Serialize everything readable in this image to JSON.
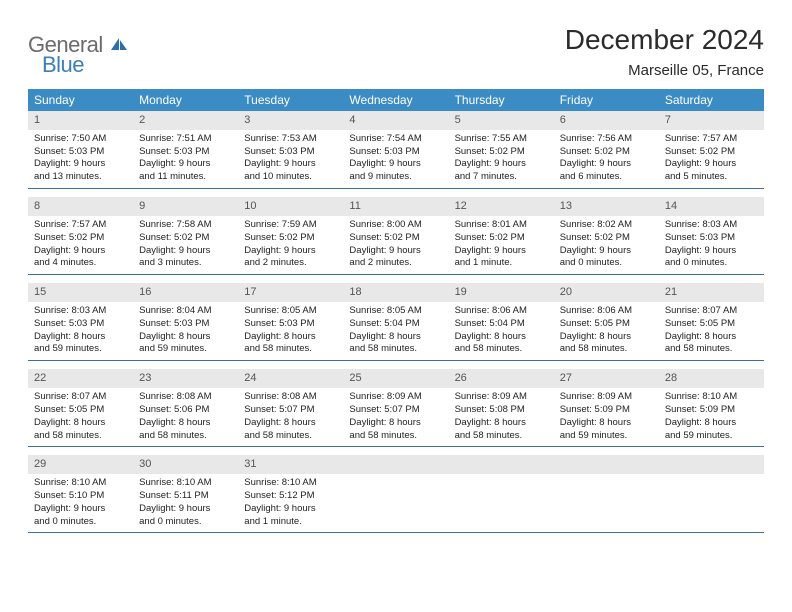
{
  "logo": {
    "text1": "General",
    "text2": "Blue"
  },
  "title": "December 2024",
  "location": "Marseille 05, France",
  "header_bg": "#3b8bc4",
  "header_fg": "#ffffff",
  "daynum_bg": "#e8e8e8",
  "row_border": "#3b6fa0",
  "dow": [
    "Sunday",
    "Monday",
    "Tuesday",
    "Wednesday",
    "Thursday",
    "Friday",
    "Saturday"
  ],
  "weeks": [
    [
      {
        "n": "1",
        "sr": "Sunrise: 7:50 AM",
        "ss": "Sunset: 5:03 PM",
        "d1": "Daylight: 9 hours",
        "d2": "and 13 minutes."
      },
      {
        "n": "2",
        "sr": "Sunrise: 7:51 AM",
        "ss": "Sunset: 5:03 PM",
        "d1": "Daylight: 9 hours",
        "d2": "and 11 minutes."
      },
      {
        "n": "3",
        "sr": "Sunrise: 7:53 AM",
        "ss": "Sunset: 5:03 PM",
        "d1": "Daylight: 9 hours",
        "d2": "and 10 minutes."
      },
      {
        "n": "4",
        "sr": "Sunrise: 7:54 AM",
        "ss": "Sunset: 5:03 PM",
        "d1": "Daylight: 9 hours",
        "d2": "and 9 minutes."
      },
      {
        "n": "5",
        "sr": "Sunrise: 7:55 AM",
        "ss": "Sunset: 5:02 PM",
        "d1": "Daylight: 9 hours",
        "d2": "and 7 minutes."
      },
      {
        "n": "6",
        "sr": "Sunrise: 7:56 AM",
        "ss": "Sunset: 5:02 PM",
        "d1": "Daylight: 9 hours",
        "d2": "and 6 minutes."
      },
      {
        "n": "7",
        "sr": "Sunrise: 7:57 AM",
        "ss": "Sunset: 5:02 PM",
        "d1": "Daylight: 9 hours",
        "d2": "and 5 minutes."
      }
    ],
    [
      {
        "n": "8",
        "sr": "Sunrise: 7:57 AM",
        "ss": "Sunset: 5:02 PM",
        "d1": "Daylight: 9 hours",
        "d2": "and 4 minutes."
      },
      {
        "n": "9",
        "sr": "Sunrise: 7:58 AM",
        "ss": "Sunset: 5:02 PM",
        "d1": "Daylight: 9 hours",
        "d2": "and 3 minutes."
      },
      {
        "n": "10",
        "sr": "Sunrise: 7:59 AM",
        "ss": "Sunset: 5:02 PM",
        "d1": "Daylight: 9 hours",
        "d2": "and 2 minutes."
      },
      {
        "n": "11",
        "sr": "Sunrise: 8:00 AM",
        "ss": "Sunset: 5:02 PM",
        "d1": "Daylight: 9 hours",
        "d2": "and 2 minutes."
      },
      {
        "n": "12",
        "sr": "Sunrise: 8:01 AM",
        "ss": "Sunset: 5:02 PM",
        "d1": "Daylight: 9 hours",
        "d2": "and 1 minute."
      },
      {
        "n": "13",
        "sr": "Sunrise: 8:02 AM",
        "ss": "Sunset: 5:02 PM",
        "d1": "Daylight: 9 hours",
        "d2": "and 0 minutes."
      },
      {
        "n": "14",
        "sr": "Sunrise: 8:03 AM",
        "ss": "Sunset: 5:03 PM",
        "d1": "Daylight: 9 hours",
        "d2": "and 0 minutes."
      }
    ],
    [
      {
        "n": "15",
        "sr": "Sunrise: 8:03 AM",
        "ss": "Sunset: 5:03 PM",
        "d1": "Daylight: 8 hours",
        "d2": "and 59 minutes."
      },
      {
        "n": "16",
        "sr": "Sunrise: 8:04 AM",
        "ss": "Sunset: 5:03 PM",
        "d1": "Daylight: 8 hours",
        "d2": "and 59 minutes."
      },
      {
        "n": "17",
        "sr": "Sunrise: 8:05 AM",
        "ss": "Sunset: 5:03 PM",
        "d1": "Daylight: 8 hours",
        "d2": "and 58 minutes."
      },
      {
        "n": "18",
        "sr": "Sunrise: 8:05 AM",
        "ss": "Sunset: 5:04 PM",
        "d1": "Daylight: 8 hours",
        "d2": "and 58 minutes."
      },
      {
        "n": "19",
        "sr": "Sunrise: 8:06 AM",
        "ss": "Sunset: 5:04 PM",
        "d1": "Daylight: 8 hours",
        "d2": "and 58 minutes."
      },
      {
        "n": "20",
        "sr": "Sunrise: 8:06 AM",
        "ss": "Sunset: 5:05 PM",
        "d1": "Daylight: 8 hours",
        "d2": "and 58 minutes."
      },
      {
        "n": "21",
        "sr": "Sunrise: 8:07 AM",
        "ss": "Sunset: 5:05 PM",
        "d1": "Daylight: 8 hours",
        "d2": "and 58 minutes."
      }
    ],
    [
      {
        "n": "22",
        "sr": "Sunrise: 8:07 AM",
        "ss": "Sunset: 5:05 PM",
        "d1": "Daylight: 8 hours",
        "d2": "and 58 minutes."
      },
      {
        "n": "23",
        "sr": "Sunrise: 8:08 AM",
        "ss": "Sunset: 5:06 PM",
        "d1": "Daylight: 8 hours",
        "d2": "and 58 minutes."
      },
      {
        "n": "24",
        "sr": "Sunrise: 8:08 AM",
        "ss": "Sunset: 5:07 PM",
        "d1": "Daylight: 8 hours",
        "d2": "and 58 minutes."
      },
      {
        "n": "25",
        "sr": "Sunrise: 8:09 AM",
        "ss": "Sunset: 5:07 PM",
        "d1": "Daylight: 8 hours",
        "d2": "and 58 minutes."
      },
      {
        "n": "26",
        "sr": "Sunrise: 8:09 AM",
        "ss": "Sunset: 5:08 PM",
        "d1": "Daylight: 8 hours",
        "d2": "and 58 minutes."
      },
      {
        "n": "27",
        "sr": "Sunrise: 8:09 AM",
        "ss": "Sunset: 5:09 PM",
        "d1": "Daylight: 8 hours",
        "d2": "and 59 minutes."
      },
      {
        "n": "28",
        "sr": "Sunrise: 8:10 AM",
        "ss": "Sunset: 5:09 PM",
        "d1": "Daylight: 8 hours",
        "d2": "and 59 minutes."
      }
    ],
    [
      {
        "n": "29",
        "sr": "Sunrise: 8:10 AM",
        "ss": "Sunset: 5:10 PM",
        "d1": "Daylight: 9 hours",
        "d2": "and 0 minutes."
      },
      {
        "n": "30",
        "sr": "Sunrise: 8:10 AM",
        "ss": "Sunset: 5:11 PM",
        "d1": "Daylight: 9 hours",
        "d2": "and 0 minutes."
      },
      {
        "n": "31",
        "sr": "Sunrise: 8:10 AM",
        "ss": "Sunset: 5:12 PM",
        "d1": "Daylight: 9 hours",
        "d2": "and 1 minute."
      },
      null,
      null,
      null,
      null
    ]
  ]
}
